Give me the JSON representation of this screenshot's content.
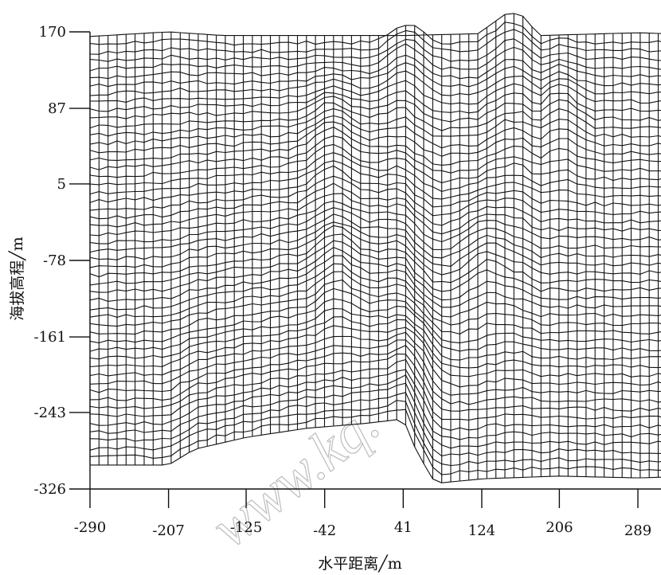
{
  "chart_data": {
    "type": "wireframe-surface",
    "xlabel": "水平距离╱m",
    "ylabel": "海拔高程╱m",
    "x_ticks": [
      -290,
      -207,
      -125,
      -42,
      41,
      124,
      206,
      289
    ],
    "y_ticks": [
      170,
      87,
      5,
      -78,
      -161,
      -243,
      -326
    ],
    "xlim": [
      -290,
      320
    ],
    "ylim": [
      -326,
      185
    ],
    "grid": "wire mesh",
    "description_points": {
      "bottom_profile": [
        [
          -290,
          -300
        ],
        [
          -207,
          -300
        ],
        [
          -180,
          -283
        ],
        [
          -125,
          -270
        ],
        [
          -60,
          -260
        ],
        [
          0,
          -255
        ],
        [
          41,
          -250
        ],
        [
          55,
          -285
        ],
        [
          75,
          -320
        ],
        [
          124,
          -315
        ],
        [
          206,
          -312
        ],
        [
          289,
          -314
        ],
        [
          320,
          -313
        ]
      ],
      "top_profile": [
        [
          -290,
          165
        ],
        [
          -207,
          170
        ],
        [
          -150,
          166
        ],
        [
          -42,
          166
        ],
        [
          41,
          166
        ],
        [
          120,
          168
        ],
        [
          150,
          190
        ],
        [
          165,
          190
        ],
        [
          185,
          166
        ],
        [
          289,
          169
        ],
        [
          320,
          168
        ]
      ],
      "peaks": [
        [
          45,
          140
        ],
        [
          -35,
          40
        ],
        [
          -30,
          -95
        ],
        [
          206,
          70
        ],
        [
          125,
          -80
        ],
        [
          60,
          -200
        ]
      ]
    }
  },
  "watermark": "www.kq."
}
